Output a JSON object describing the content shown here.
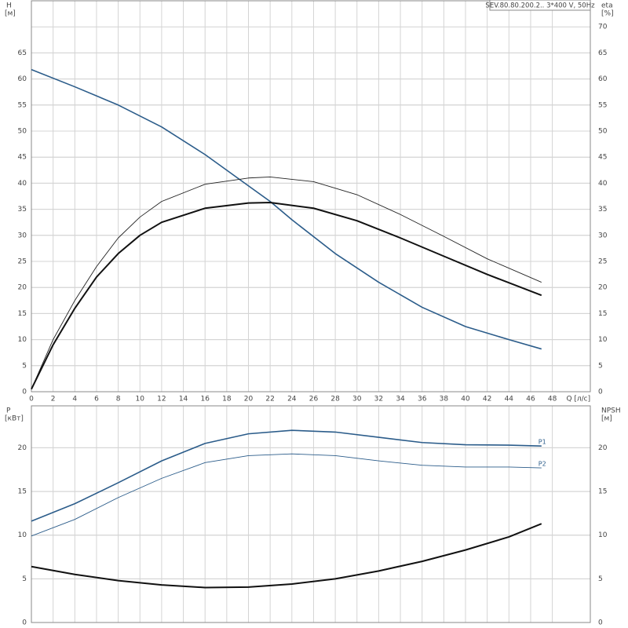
{
  "chart_data": [
    {
      "type": "line",
      "title": "SEV.80.80.200.2.. 3*400 V, 50Hz",
      "y_label": "H",
      "y_unit": "[м]",
      "y2_label": "eta",
      "y2_unit": "[%]",
      "x_label": "Q [л/с]",
      "xlim": [
        0,
        51.5
      ],
      "xticks": [
        0,
        2,
        4,
        6,
        8,
        10,
        12,
        14,
        16,
        18,
        20,
        22,
        24,
        26,
        28,
        30,
        32,
        34,
        36,
        38,
        40,
        42,
        44,
        46,
        48
      ],
      "ylim": [
        0,
        75
      ],
      "yticks": [
        0,
        5,
        10,
        15,
        20,
        25,
        30,
        35,
        40,
        45,
        50,
        55,
        60,
        65
      ],
      "y2lim": [
        0,
        75
      ],
      "y2ticks": [
        0,
        5,
        10,
        15,
        20,
        25,
        30,
        35,
        40,
        45,
        50,
        55,
        60,
        65,
        70
      ],
      "grid": true,
      "series": [
        {
          "color": "#2b5c8a",
          "width": 1.6,
          "x": [
            0,
            4,
            8,
            12,
            16,
            20,
            22,
            24,
            28,
            32,
            36,
            40,
            44,
            47
          ],
          "values": [
            61.8,
            58.5,
            55,
            50.8,
            45.5,
            39.5,
            36.5,
            33,
            26.5,
            21,
            16.2,
            12.5,
            10,
            8.2
          ]
        },
        {
          "color": "#222222",
          "width": 0.9,
          "axis": "y2",
          "x": [
            0,
            2,
            4,
            6,
            8,
            10,
            12,
            16,
            20,
            22,
            26,
            30,
            34,
            38,
            42,
            47
          ],
          "values": [
            0.5,
            10,
            17.5,
            24,
            29.5,
            33.5,
            36.5,
            39.8,
            41,
            41.2,
            40.3,
            37.8,
            34,
            29.8,
            25.5,
            21
          ]
        },
        {
          "color": "#111111",
          "width": 2,
          "axis": "y2",
          "x": [
            0,
            2,
            4,
            6,
            8,
            10,
            12,
            16,
            20,
            22,
            26,
            30,
            34,
            38,
            42,
            47
          ],
          "values": [
            0.5,
            9,
            16,
            22,
            26.5,
            30,
            32.5,
            35.2,
            36.2,
            36.3,
            35.2,
            32.8,
            29.5,
            26,
            22.5,
            18.5
          ]
        }
      ]
    },
    {
      "type": "line",
      "y_label": "P",
      "y_unit": "[кВт]",
      "y2_label": "NPSH",
      "y2_unit": "[м]",
      "xlim": [
        0,
        51.5
      ],
      "xticks": [
        0,
        2,
        4,
        6,
        8,
        10,
        12,
        14,
        16,
        18,
        20,
        22,
        24,
        26,
        28,
        30,
        32,
        34,
        36,
        38,
        40,
        42,
        44,
        46,
        48
      ],
      "ylim": [
        0,
        24.8
      ],
      "yticks": [
        0,
        5,
        10,
        15,
        20
      ],
      "y2lim": [
        0,
        24.8
      ],
      "y2ticks": [
        0,
        5,
        10,
        15,
        20
      ],
      "grid": true,
      "series": [
        {
          "name": "P1",
          "color": "#2b5c8a",
          "width": 1.6,
          "x": [
            0,
            4,
            8,
            12,
            16,
            20,
            24,
            28,
            32,
            36,
            40,
            44,
            47
          ],
          "values": [
            11.6,
            13.6,
            16,
            18.5,
            20.5,
            21.6,
            22,
            21.8,
            21.2,
            20.6,
            20.35,
            20.3,
            20.2
          ]
        },
        {
          "name": "P2",
          "color": "#2b5c8a",
          "width": 0.9,
          "x": [
            0,
            4,
            8,
            12,
            16,
            20,
            24,
            28,
            32,
            36,
            40,
            44,
            47
          ],
          "values": [
            9.9,
            11.8,
            14.3,
            16.5,
            18.3,
            19.1,
            19.3,
            19.1,
            18.5,
            18,
            17.8,
            17.8,
            17.7
          ]
        },
        {
          "color": "#111111",
          "width": 2,
          "axis": "y2",
          "x": [
            0,
            4,
            8,
            12,
            16,
            20,
            24,
            28,
            32,
            36,
            40,
            44,
            47
          ],
          "values": [
            6.4,
            5.5,
            4.8,
            4.3,
            4,
            4.05,
            4.4,
            5,
            5.9,
            7,
            8.3,
            9.8,
            11.3
          ]
        }
      ]
    }
  ]
}
